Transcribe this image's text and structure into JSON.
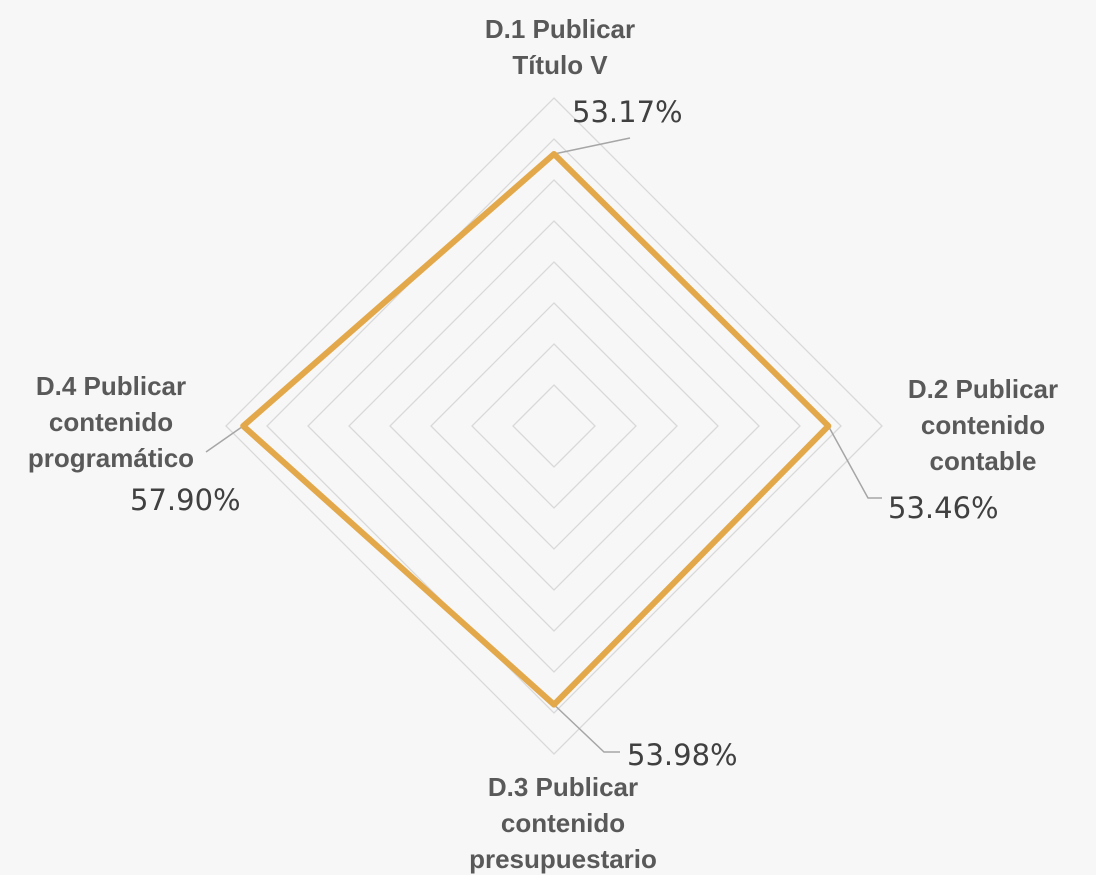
{
  "chart_data": {
    "type": "radar",
    "categories": [
      [
        "D.1 Publicar",
        "Título V"
      ],
      [
        "D.2 Publicar",
        "contenido",
        "contable"
      ],
      [
        "D.3 Publicar",
        "contenido",
        "presupuestario"
      ],
      [
        "D.4 Publicar",
        "contenido",
        "programático"
      ]
    ],
    "series": [
      {
        "values": [
          0.5317,
          0.5346,
          0.5398,
          0.579
        ],
        "labels": [
          "53.17%",
          "53.46%",
          "53.98%",
          "57.90%"
        ],
        "color": "#e3a84a"
      }
    ],
    "rlim": [
      0.2,
      0.6
    ],
    "grid": true,
    "legend": "none"
  }
}
